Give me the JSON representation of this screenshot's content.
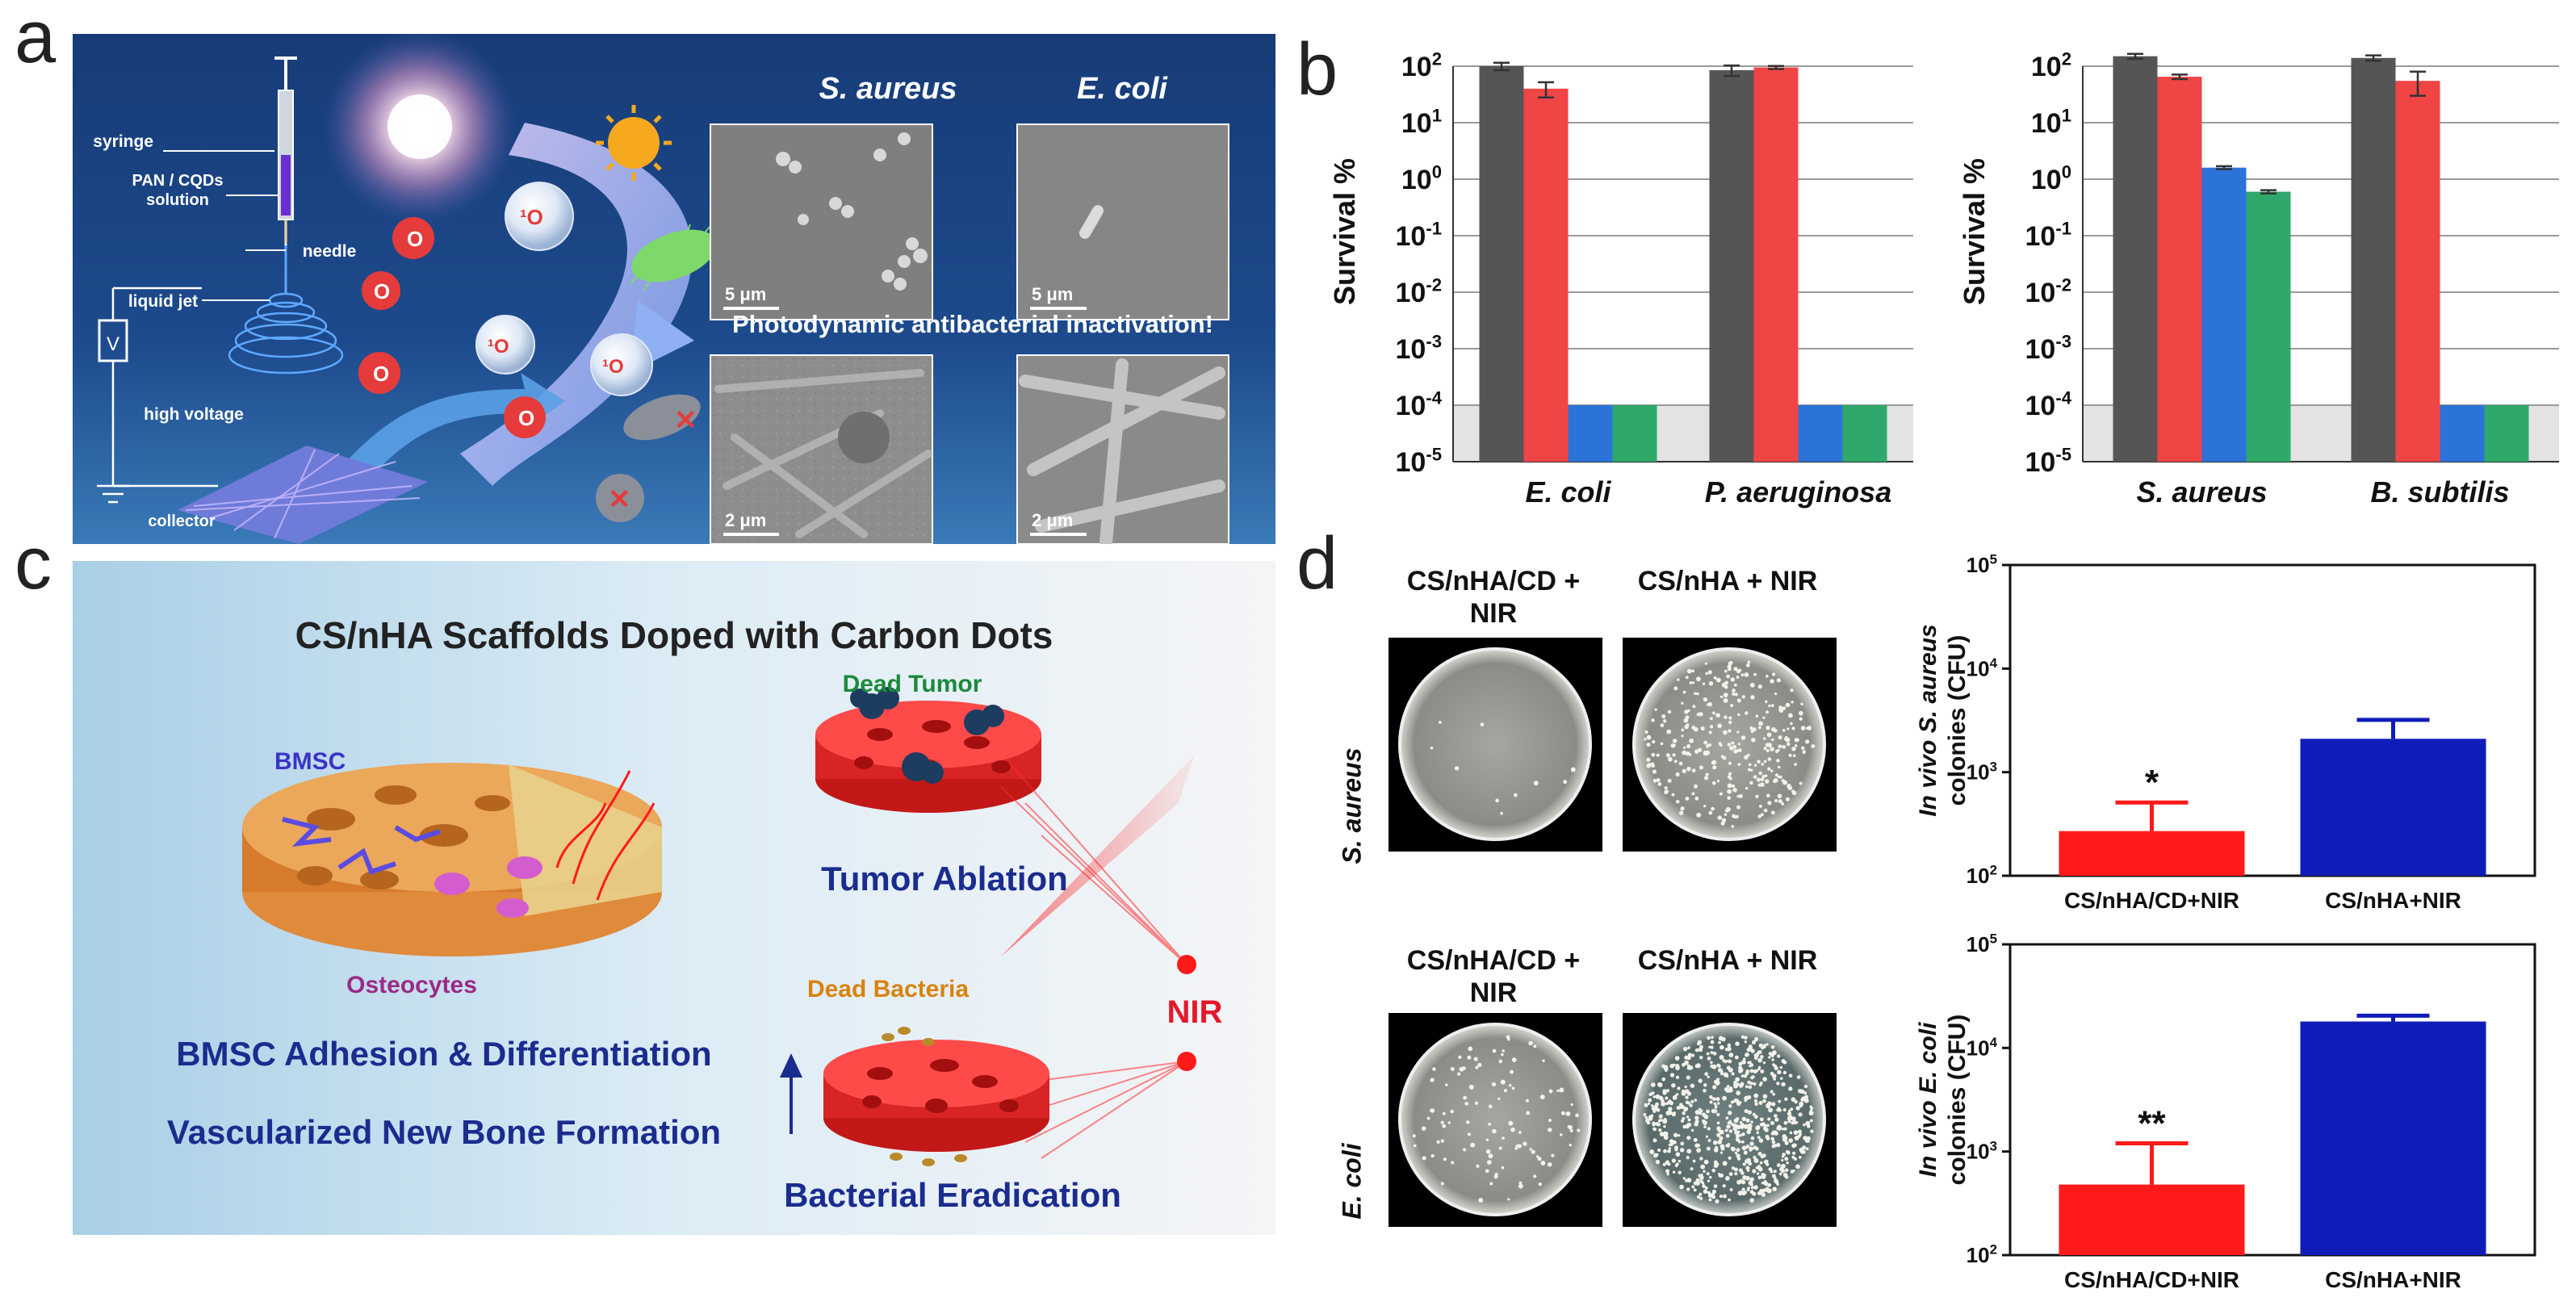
{
  "figure": {
    "letters": [
      "a",
      "b",
      "c",
      "d"
    ]
  },
  "panel_a": {
    "labels": {
      "syringe": "syringe",
      "solution": "PAN / CQDs solution",
      "needle": "needle",
      "liquid_jet": "liquid jet",
      "high_voltage": "high voltage",
      "collector": "collector",
      "voltage_symbol": "V",
      "o2": "O",
      "singlet": "¹O",
      "micrograph_title_1": "S. aureus",
      "micrograph_title_2": "E. coli",
      "scale_5um": "5 μm",
      "scale_2um": "2 μm",
      "caption": "Photodynamic antibacterial inactivation!"
    },
    "colors": {
      "bg": "#173c78",
      "accent": "#3d63c4",
      "arrow": "#b9a4f0"
    }
  },
  "panel_c": {
    "title": "CS/nHA Scaffolds Doped with Carbon Dots",
    "bmsc": "BMSC",
    "osteocytes": "Osteocytes",
    "dead_tumor": "Dead Tumor",
    "tumor_ablation": "Tumor Ablation",
    "nir": "NIR",
    "dead_bacteria": "Dead Bacteria",
    "bacterial_eradication": "Bacterial Eradication",
    "bmsc_adhesion": "BMSC Adhesion & Differentiation",
    "vascularized": "Vascularized New Bone Formation",
    "colors": {
      "title": "#222222",
      "navy": "#1b2c8f",
      "green": "#1a8a3a",
      "orange": "#d9820e",
      "red": "#e3192b",
      "purple": "#9b2a86"
    }
  },
  "panel_d": {
    "plate_labels": [
      "CS/nHA/CD + NIR",
      "CS/nHA + NIR"
    ],
    "row_labels": [
      "S. aureus",
      "E. coli"
    ]
  },
  "chart_data": [
    {
      "id": "b-left",
      "type": "bar",
      "scale": "log",
      "categories": [
        "E. coli",
        "P. aeruginosa"
      ],
      "ylabel": "Survival %",
      "ylim": [
        1e-05,
        100
      ],
      "yticks": [
        "10^2",
        "10^1",
        "10^0",
        "10^-1",
        "10^-2",
        "10^-3",
        "10^-4",
        "10^-5"
      ],
      "series": [
        {
          "values": [
            100,
            85
          ],
          "errors": [
            15,
            18
          ],
          "color": "#555555"
        },
        {
          "values": [
            40,
            95
          ],
          "errors": [
            12,
            6
          ],
          "color": "#f04545"
        },
        {
          "values": [
            0.0001,
            0.0001
          ],
          "errors": [
            0,
            0
          ],
          "color": "#2c73d8"
        },
        {
          "values": [
            0.0001,
            0.0001
          ],
          "errors": [
            0,
            0
          ],
          "color": "#2ea86b"
        }
      ]
    },
    {
      "id": "b-right",
      "type": "bar",
      "scale": "log",
      "categories": [
        "S. aureus",
        "B. subtilis"
      ],
      "ylabel": "Survival %",
      "ylim": [
        1e-05,
        100
      ],
      "yticks": [
        "10^2",
        "10^1",
        "10^0",
        "10^-1",
        "10^-2",
        "10^-3",
        "10^-4",
        "10^-5"
      ],
      "series": [
        {
          "values": [
            150,
            140
          ],
          "errors": [
            15,
            15
          ],
          "color": "#555555"
        },
        {
          "values": [
            65,
            55
          ],
          "errors": [
            6,
            25
          ],
          "color": "#f04545"
        },
        {
          "values": [
            1.6,
            0.0001
          ],
          "errors": [
            0.1,
            0
          ],
          "color": "#2c73d8"
        },
        {
          "values": [
            0.6,
            0.0001
          ],
          "errors": [
            0.04,
            0
          ],
          "color": "#2ea86b"
        }
      ]
    },
    {
      "id": "d-top",
      "type": "bar",
      "scale": "log",
      "categories": [
        "CS/nHA/CD+NIR",
        "CS/nHA+NIR"
      ],
      "ylabel_prefix": "In vivo S. aureus",
      "ylabel": "colonies (CFU)",
      "ylim": [
        100,
        100000
      ],
      "yticks": [
        "10^5",
        "10^4",
        "10^3",
        "10^2"
      ],
      "annotations": [
        "*"
      ],
      "series": [
        {
          "values": [
            270,
            2100
          ],
          "errors": [
            240,
            1100
          ],
          "colors": [
            "#ff1a1a",
            "#0f1db8"
          ]
        }
      ]
    },
    {
      "id": "d-bottom",
      "type": "bar",
      "scale": "log",
      "categories": [
        "CS/nHA/CD+NIR",
        "CS/nHA+NIR"
      ],
      "ylabel_prefix": "In vivo E. coli",
      "ylabel": "colonies (CFU)",
      "ylim": [
        100,
        100000
      ],
      "yticks": [
        "10^5",
        "10^4",
        "10^3",
        "10^2"
      ],
      "annotations": [
        "**"
      ],
      "series": [
        {
          "values": [
            480,
            18000
          ],
          "errors": [
            720,
            2500
          ],
          "colors": [
            "#ff1a1a",
            "#0f1db8"
          ]
        }
      ]
    }
  ]
}
